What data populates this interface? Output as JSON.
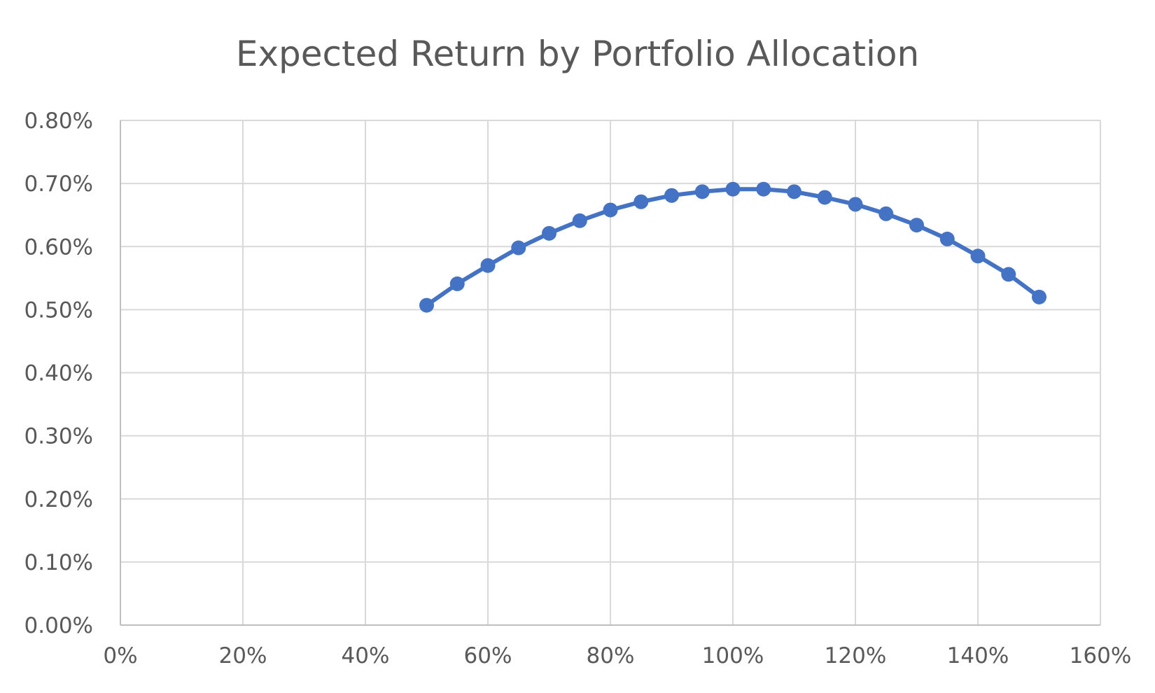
{
  "chart_data": {
    "type": "scatter",
    "title": "Expected Return by Portfolio Allocation",
    "xlabel": "",
    "ylabel": "",
    "xlim": [
      0,
      1.6
    ],
    "ylim": [
      0,
      0.008
    ],
    "grid": true,
    "line_color": "#4472C4",
    "x_ticks": [
      "0%",
      "20%",
      "40%",
      "60%",
      "80%",
      "100%",
      "120%",
      "140%",
      "160%"
    ],
    "y_ticks": [
      "0.00%",
      "0.10%",
      "0.20%",
      "0.30%",
      "0.40%",
      "0.50%",
      "0.60%",
      "0.70%",
      "0.80%"
    ],
    "series": [
      {
        "x": [
          0.5,
          0.55,
          0.6,
          0.65,
          0.7,
          0.75,
          0.8,
          0.85,
          0.9,
          0.95,
          1.0,
          1.05,
          1.1,
          1.15,
          1.2,
          1.25,
          1.3,
          1.35,
          1.4,
          1.45,
          1.5
        ],
        "y": [
          0.00507,
          0.00541,
          0.0057,
          0.00598,
          0.00621,
          0.00641,
          0.00658,
          0.00671,
          0.00681,
          0.00687,
          0.00691,
          0.00691,
          0.00687,
          0.00678,
          0.00667,
          0.00652,
          0.00634,
          0.00612,
          0.00585,
          0.00556,
          0.0052
        ]
      }
    ]
  }
}
